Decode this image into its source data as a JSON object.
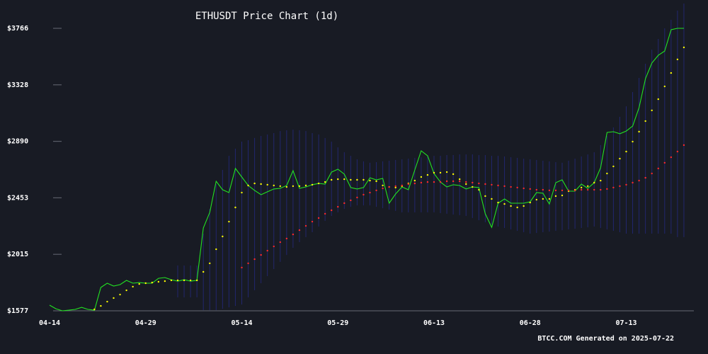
{
  "chart_data": {
    "type": "line",
    "title": "ETHUSDT Price Chart (1d)",
    "footer": "BTCC.COM Generated on 2025-07-22",
    "categories": [
      "04-14",
      null,
      null,
      null,
      null,
      null,
      null,
      null,
      null,
      null,
      null,
      null,
      null,
      null,
      null,
      "04-29",
      null,
      null,
      null,
      null,
      null,
      null,
      null,
      null,
      null,
      null,
      null,
      null,
      null,
      null,
      "05-14",
      null,
      null,
      null,
      null,
      null,
      null,
      null,
      null,
      null,
      null,
      null,
      null,
      null,
      null,
      "05-29",
      null,
      null,
      null,
      null,
      null,
      null,
      null,
      null,
      null,
      null,
      null,
      null,
      null,
      null,
      "06-13",
      null,
      null,
      null,
      null,
      null,
      null,
      null,
      null,
      null,
      null,
      null,
      null,
      null,
      null,
      "06-28",
      null,
      null,
      null,
      null,
      null,
      null,
      null,
      null,
      null,
      null,
      null,
      null,
      null,
      null,
      "07-13",
      null,
      null,
      null,
      null,
      null,
      null,
      null,
      null,
      null
    ],
    "ylim": [
      1577,
      3958
    ],
    "yticks": [
      {
        "value": 1577,
        "label": "$1577"
      },
      {
        "value": 2015,
        "label": "$2015"
      },
      {
        "value": 2453,
        "label": "$2453"
      },
      {
        "value": 2890,
        "label": "$2890"
      },
      {
        "value": 3328,
        "label": "$3328"
      },
      {
        "value": 3766,
        "label": "$3766"
      }
    ],
    "band": {
      "color": "#24287a",
      "upper": [
        null,
        null,
        null,
        null,
        null,
        null,
        null,
        null,
        null,
        null,
        null,
        null,
        null,
        null,
        null,
        null,
        null,
        null,
        null,
        null,
        1928,
        1928,
        1928,
        1928,
        2175,
        2367,
        2559,
        2669,
        2778,
        2833,
        2888,
        2899,
        2916,
        2932,
        2943,
        2954,
        2970,
        2976,
        2981,
        2976,
        2970,
        2954,
        2943,
        2916,
        2888,
        2844,
        2806,
        2778,
        2751,
        2735,
        2724,
        2729,
        2735,
        2740,
        2746,
        2751,
        2756,
        2762,
        2767,
        2773,
        2778,
        2778,
        2784,
        2784,
        2789,
        2789,
        2789,
        2784,
        2784,
        2778,
        2778,
        2773,
        2767,
        2762,
        2756,
        2751,
        2746,
        2740,
        2735,
        2729,
        2724,
        2740,
        2756,
        2773,
        2789,
        2806,
        2861,
        2932,
        2998,
        3080,
        3162,
        3272,
        3382,
        3492,
        3601,
        3684,
        3766,
        3832,
        3903,
        3958
      ],
      "lower": [
        null,
        null,
        null,
        null,
        null,
        null,
        null,
        null,
        null,
        null,
        null,
        null,
        null,
        null,
        null,
        null,
        null,
        null,
        null,
        null,
        1681,
        1681,
        1681,
        1681,
        1582,
        1582,
        1582,
        1593,
        1604,
        1615,
        1626,
        1681,
        1736,
        1791,
        1846,
        1901,
        1956,
        2010,
        2065,
        2109,
        2148,
        2186,
        2230,
        2274,
        2312,
        2340,
        2367,
        2383,
        2394,
        2394,
        2394,
        2383,
        2372,
        2361,
        2351,
        2340,
        2340,
        2340,
        2340,
        2340,
        2340,
        2334,
        2329,
        2323,
        2318,
        2312,
        2296,
        2279,
        2263,
        2246,
        2230,
        2219,
        2208,
        2197,
        2186,
        2175,
        2180,
        2186,
        2191,
        2197,
        2202,
        2208,
        2213,
        2219,
        2224,
        2230,
        2219,
        2208,
        2197,
        2186,
        2175,
        2175,
        2175,
        2175,
        2175,
        2175,
        2175,
        2175,
        2148,
        2148
      ]
    },
    "series": [
      {
        "color": "#22e222",
        "style": "line",
        "values": [
          1621,
          1593,
          1577,
          1582,
          1588,
          1604,
          1588,
          1582,
          1758,
          1791,
          1769,
          1780,
          1813,
          1791,
          1796,
          1791,
          1791,
          1829,
          1835,
          1818,
          1807,
          1818,
          1807,
          1813,
          2219,
          2340,
          2581,
          2515,
          2493,
          2680,
          2614,
          2548,
          2510,
          2477,
          2499,
          2521,
          2526,
          2548,
          2663,
          2526,
          2537,
          2554,
          2564,
          2559,
          2652,
          2674,
          2636,
          2532,
          2521,
          2532,
          2608,
          2592,
          2603,
          2411,
          2482,
          2537,
          2515,
          2669,
          2817,
          2778,
          2641,
          2575,
          2537,
          2554,
          2548,
          2521,
          2537,
          2532,
          2329,
          2224,
          2411,
          2444,
          2411,
          2411,
          2411,
          2422,
          2493,
          2488,
          2405,
          2570,
          2592,
          2504,
          2504,
          2559,
          2526,
          2570,
          2685,
          2959,
          2965,
          2949,
          2970,
          3009,
          3151,
          3376,
          3497,
          3557,
          3590,
          3755,
          3766,
          3766
        ]
      },
      {
        "color": "#ffff00",
        "style": "dots",
        "values": [
          null,
          null,
          null,
          null,
          null,
          null,
          null,
          1588,
          1615,
          1648,
          1676,
          1703,
          1736,
          1764,
          1785,
          1791,
          1796,
          1802,
          1807,
          1813,
          1813,
          1813,
          1813,
          1813,
          1879,
          1945,
          2054,
          2153,
          2268,
          2378,
          2493,
          2548,
          2564,
          2559,
          2554,
          2548,
          2543,
          2537,
          2543,
          2543,
          2548,
          2554,
          2564,
          2575,
          2592,
          2597,
          2597,
          2592,
          2592,
          2592,
          2586,
          2581,
          2548,
          2537,
          2532,
          2543,
          2564,
          2586,
          2614,
          2630,
          2647,
          2647,
          2652,
          2636,
          2597,
          2559,
          2537,
          2515,
          2466,
          2444,
          2416,
          2405,
          2389,
          2378,
          2389,
          2416,
          2438,
          2444,
          2444,
          2466,
          2471,
          2504,
          2515,
          2532,
          2543,
          2570,
          2586,
          2641,
          2696,
          2756,
          2811,
          2888,
          2965,
          3047,
          3130,
          3217,
          3316,
          3420,
          3525,
          3618
        ]
      },
      {
        "color": "#ff2a2a",
        "style": "dots",
        "values": [
          null,
          null,
          null,
          null,
          null,
          null,
          null,
          null,
          null,
          null,
          null,
          null,
          null,
          null,
          null,
          null,
          null,
          null,
          null,
          null,
          null,
          null,
          null,
          null,
          null,
          null,
          null,
          null,
          null,
          null,
          1912,
          1945,
          1977,
          2010,
          2043,
          2076,
          2109,
          2137,
          2169,
          2202,
          2235,
          2268,
          2296,
          2329,
          2356,
          2383,
          2411,
          2433,
          2455,
          2477,
          2493,
          2510,
          2526,
          2537,
          2543,
          2548,
          2559,
          2564,
          2570,
          2575,
          2575,
          2575,
          2581,
          2581,
          2581,
          2575,
          2570,
          2564,
          2559,
          2554,
          2548,
          2543,
          2537,
          2532,
          2526,
          2521,
          2515,
          2515,
          2510,
          2510,
          2510,
          2510,
          2510,
          2515,
          2515,
          2515,
          2515,
          2521,
          2532,
          2543,
          2554,
          2570,
          2586,
          2608,
          2641,
          2680,
          2724,
          2767,
          2811,
          2861
        ]
      }
    ]
  }
}
